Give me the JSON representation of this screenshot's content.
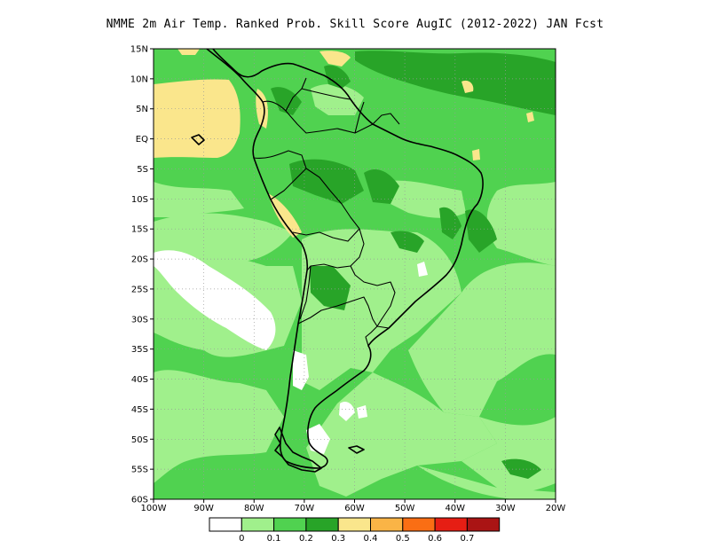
{
  "title": "NMME  2m Air Temp. Ranked Prob. Skill Score AugIC (2012-2022) JAN Fcst",
  "map": {
    "lon_range": [
      -100,
      -20
    ],
    "lat_range": [
      -60,
      15
    ],
    "lat_labels": [
      "15N",
      "10N",
      "5N",
      "EQ",
      "5S",
      "10S",
      "15S",
      "20S",
      "25S",
      "30S",
      "35S",
      "40S",
      "45S",
      "50S",
      "55S",
      "60S"
    ],
    "lon_labels": [
      "100W",
      "90W",
      "80W",
      "70W",
      "60W",
      "50W",
      "40W",
      "30W",
      "20W"
    ],
    "gridlines": "dotted"
  },
  "legend": {
    "colors": [
      "#ffffff",
      "#a0f08c",
      "#50d250",
      "#28a428",
      "#fae68c",
      "#fab446",
      "#fa6e14",
      "#e61e14",
      "#aa1414"
    ],
    "labels": [
      "0",
      "0.1",
      "0.2",
      "0.3",
      "0.4",
      "0.5",
      "0.6",
      "0.7"
    ]
  }
}
